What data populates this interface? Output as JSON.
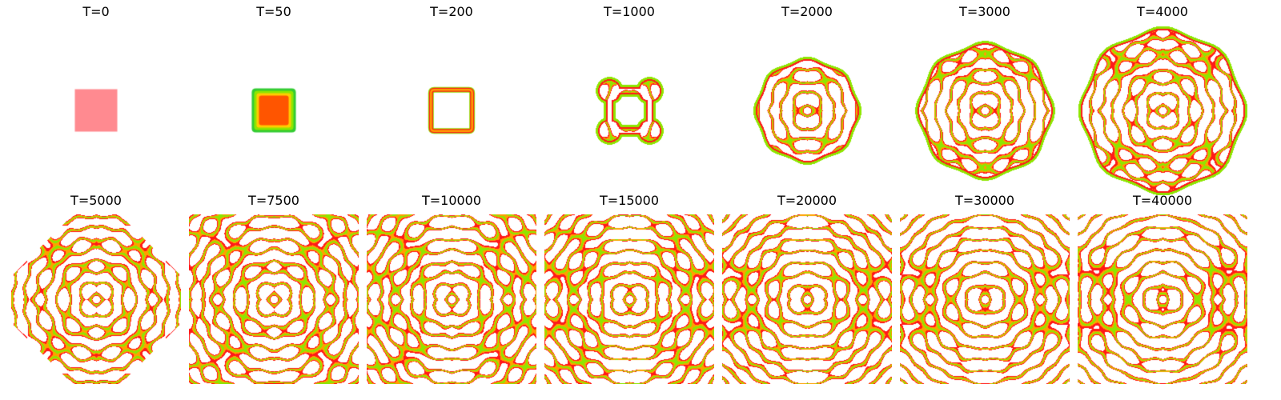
{
  "figure": {
    "panels": [
      {
        "label": "T=0",
        "stage": "square-solid",
        "extent": 0.25
      },
      {
        "label": "T=50",
        "stage": "square-ring",
        "extent": 0.26
      },
      {
        "label": "T=200",
        "stage": "square-outline",
        "extent": 0.28
      },
      {
        "label": "T=1000",
        "stage": "four-lobes",
        "extent": 0.43
      },
      {
        "label": "T=2000",
        "stage": "blob",
        "extent": 0.62
      },
      {
        "label": "T=3000",
        "stage": "blob",
        "extent": 0.8
      },
      {
        "label": "T=4000",
        "stage": "blob",
        "extent": 0.97
      },
      {
        "label": "T=5000",
        "stage": "labyrinth",
        "extent": 1.0
      },
      {
        "label": "T=7500",
        "stage": "labyrinth",
        "extent": 1.0
      },
      {
        "label": "T=10000",
        "stage": "labyrinth",
        "extent": 1.0
      },
      {
        "label": "T=15000",
        "stage": "labyrinth",
        "extent": 1.0
      },
      {
        "label": "T=20000",
        "stage": "labyrinth",
        "extent": 1.0
      },
      {
        "label": "T=30000",
        "stage": "labyrinth",
        "extent": 1.0
      },
      {
        "label": "T=40000",
        "stage": "labyrinth",
        "extent": 1.0
      }
    ],
    "colors": {
      "background": "#ffffff",
      "edge": "#ff1a1a",
      "stripe": "#ffa000",
      "core": "#8ee600",
      "initial": "#ff8a90",
      "initial_inner": "#ff5500"
    }
  }
}
